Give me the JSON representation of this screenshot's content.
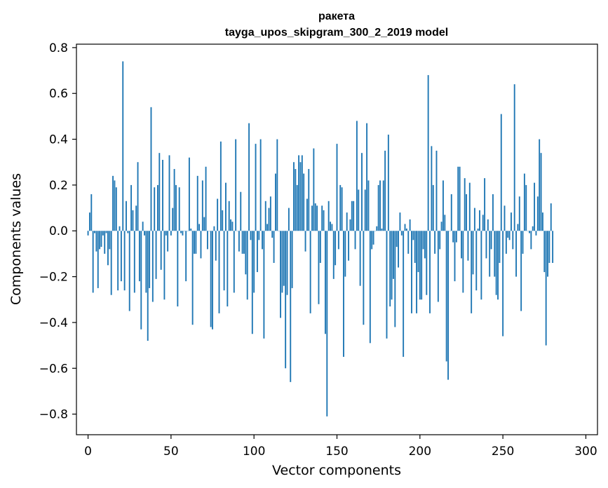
{
  "chart_data": {
    "type": "bar",
    "title": "ракета",
    "subtitle": "tayga_upos_skipgram_300_2_2019 model",
    "xlabel": "Vector components",
    "ylabel": "Components values",
    "xlim": [
      -7,
      307
    ],
    "ylim": [
      -0.89,
      0.815
    ],
    "xticks": [
      0,
      50,
      100,
      150,
      200,
      250,
      300
    ],
    "xtick_labels": [
      "0",
      "50",
      "100",
      "150",
      "200",
      "250",
      "300"
    ],
    "yticks": [
      -0.8,
      -0.6,
      -0.4,
      -0.2,
      0.0,
      0.2,
      0.4,
      0.6,
      0.8
    ],
    "ytick_labels": [
      "−0.8",
      "−0.6",
      "−0.4",
      "−0.2",
      "0.0",
      "0.2",
      "0.4",
      "0.6",
      "0.8"
    ],
    "bar_color": "#1f77b4",
    "grid": false,
    "legend": "none",
    "values": [
      -0.02,
      0.08,
      0.16,
      -0.27,
      -0.01,
      -0.09,
      -0.25,
      -0.08,
      -0.07,
      -0.02,
      -0.1,
      -0.01,
      -0.15,
      -0.08,
      -0.28,
      0.24,
      0.22,
      0.19,
      -0.26,
      0.02,
      -0.22,
      0.74,
      -0.26,
      0.13,
      -0.01,
      -0.35,
      0.2,
      0.09,
      -0.27,
      0.11,
      0.3,
      -0.22,
      -0.43,
      0.04,
      -0.02,
      -0.27,
      -0.48,
      -0.25,
      0.54,
      -0.31,
      0.19,
      -0.21,
      0.2,
      0.34,
      -0.17,
      0.31,
      -0.3,
      -0.02,
      -0.09,
      0.33,
      -0.02,
      0.1,
      0.27,
      0.2,
      -0.33,
      0.19,
      -0.01,
      -0.02,
      0.0,
      -0.22,
      0.0,
      0.32,
      0.01,
      -0.41,
      -0.1,
      -0.1,
      0.24,
      0.03,
      -0.12,
      0.22,
      0.06,
      0.28,
      -0.08,
      0.0,
      -0.42,
      -0.43,
      0.02,
      -0.13,
      0.14,
      -0.36,
      0.39,
      0.09,
      -0.26,
      0.21,
      -0.33,
      0.13,
      0.05,
      0.04,
      -0.27,
      0.4,
      0.0,
      -0.09,
      0.17,
      -0.1,
      -0.1,
      -0.19,
      -0.3,
      0.47,
      -0.04,
      -0.45,
      -0.27,
      0.38,
      -0.18,
      -0.04,
      0.4,
      -0.08,
      -0.47,
      0.13,
      0.03,
      0.1,
      0.15,
      -0.03,
      -0.14,
      0.25,
      0.4,
      0.0,
      -0.38,
      -0.27,
      -0.24,
      -0.6,
      -0.28,
      0.1,
      -0.66,
      -0.25,
      0.3,
      0.27,
      0.2,
      0.33,
      0.3,
      0.33,
      0.25,
      -0.09,
      0.14,
      0.27,
      -0.36,
      0.11,
      0.36,
      0.12,
      0.11,
      -0.32,
      -0.14,
      0.11,
      0.09,
      -0.45,
      -0.81,
      0.13,
      0.04,
      0.03,
      -0.21,
      -0.15,
      0.38,
      -0.08,
      0.2,
      0.19,
      -0.55,
      -0.2,
      0.08,
      -0.13,
      0.05,
      0.13,
      0.13,
      -0.08,
      0.48,
      0.18,
      -0.24,
      0.34,
      -0.41,
      0.18,
      0.47,
      0.22,
      -0.49,
      -0.08,
      -0.06,
      0.0,
      0.02,
      0.2,
      0.22,
      0.01,
      0.22,
      0.35,
      -0.47,
      0.42,
      -0.33,
      -0.3,
      -0.21,
      -0.42,
      -0.07,
      -0.16,
      0.08,
      -0.02,
      -0.55,
      0.03,
      0.01,
      -0.1,
      0.05,
      -0.36,
      -0.04,
      -0.14,
      -0.36,
      -0.18,
      -0.3,
      -0.3,
      -0.08,
      -0.12,
      -0.28,
      0.68,
      -0.36,
      0.37,
      0.2,
      -0.1,
      0.35,
      -0.31,
      -0.08,
      0.04,
      0.22,
      0.07,
      -0.57,
      -0.65,
      0.0,
      0.16,
      -0.05,
      -0.22,
      -0.05,
      0.28,
      0.28,
      -0.12,
      -0.27,
      0.23,
      0.16,
      -0.13,
      0.21,
      -0.36,
      -0.19,
      0.1,
      -0.26,
      0.01,
      0.09,
      -0.3,
      0.07,
      0.23,
      -0.12,
      0.05,
      -0.2,
      -0.08,
      0.16,
      -0.2,
      -0.28,
      -0.3,
      -0.14,
      0.51,
      -0.46,
      0.11,
      -0.1,
      -0.03,
      -0.04,
      0.08,
      -0.08,
      0.64,
      -0.2,
      0.03,
      0.15,
      -0.35,
      -0.1,
      0.25,
      0.2,
      0.0,
      -0.01,
      -0.08,
      0.02,
      0.21,
      -0.02,
      0.15,
      0.4,
      0.34,
      0.08,
      -0.18,
      -0.5,
      -0.2,
      -0.14,
      0.12,
      -0.14
    ]
  }
}
